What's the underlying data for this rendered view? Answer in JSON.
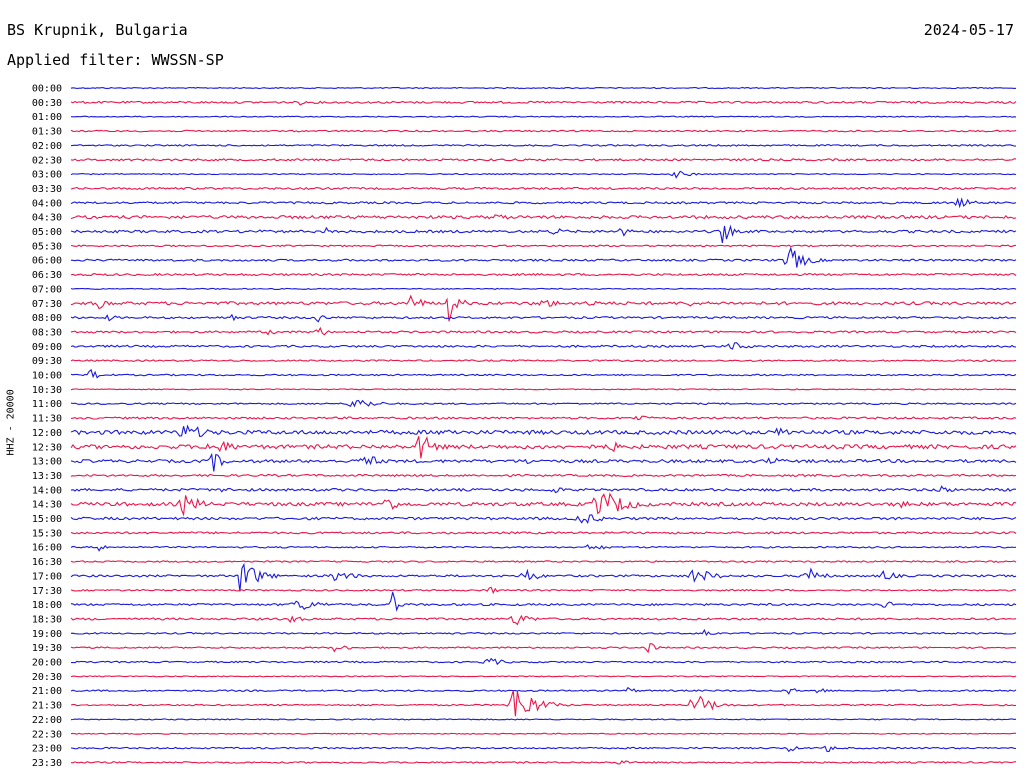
{
  "header": {
    "station": "BS Krupnik, Bulgaria",
    "filter": "Applied filter: WWSSN-SP",
    "date": "2024-05-17"
  },
  "chart_data": {
    "type": "line",
    "title": "BS Krupnik, Bulgaria",
    "subtitle": "Applied filter: WWSSN-SP",
    "date": "2024-05-17",
    "ylabel": "HHZ - 20000",
    "trace_colors": [
      "#1a1adc",
      "#e8174a"
    ],
    "rows": [
      "00:00",
      "00:30",
      "01:00",
      "01:30",
      "02:00",
      "02:30",
      "03:00",
      "03:30",
      "04:00",
      "04:30",
      "05:00",
      "05:30",
      "06:00",
      "06:30",
      "07:00",
      "07:30",
      "08:00",
      "08:30",
      "09:00",
      "09:30",
      "10:00",
      "10:30",
      "11:00",
      "11:30",
      "12:00",
      "12:30",
      "13:00",
      "13:30",
      "14:00",
      "14:30",
      "15:00",
      "15:30",
      "16:00",
      "16:30",
      "17:00",
      "17:30",
      "18:00",
      "18:30",
      "19:00",
      "19:30",
      "20:00",
      "20:30",
      "21:00",
      "21:30",
      "22:00",
      "22:30",
      "23:00",
      "23:30"
    ],
    "noise": [
      1,
      2,
      1,
      1.5,
      1.5,
      2,
      1,
      2,
      2,
      3,
      2.5,
      1.5,
      2,
      2,
      1,
      3,
      2,
      2,
      2,
      1.5,
      1.5,
      1,
      1.5,
      2,
      4,
      4,
      3,
      2,
      2.5,
      3.5,
      2.5,
      2,
      1.5,
      1.5,
      2,
      1.5,
      2,
      2,
      1.5,
      1.5,
      1.5,
      1,
      1.5,
      1.5,
      1,
      1,
      1.5,
      1.5
    ],
    "events": [
      {
        "row": "00:30",
        "t": 0.24,
        "amp": 4,
        "dur": 0.02
      },
      {
        "row": "03:00",
        "t": 0.64,
        "amp": 4,
        "dur": 0.05
      },
      {
        "row": "04:00",
        "t": 0.94,
        "amp": 5,
        "dur": 0.05
      },
      {
        "row": "04:30",
        "t": 0.45,
        "amp": 4,
        "dur": 0.05
      },
      {
        "row": "05:00",
        "t": 0.2,
        "amp": 4,
        "dur": 0.02
      },
      {
        "row": "05:00",
        "t": 0.27,
        "amp": 5,
        "dur": 0.01
      },
      {
        "row": "05:00",
        "t": 0.51,
        "amp": 4,
        "dur": 0.05
      },
      {
        "row": "05:00",
        "t": 0.69,
        "amp": 18,
        "dur": 0.02
      },
      {
        "row": "05:00",
        "t": 0.58,
        "amp": 6,
        "dur": 0.04
      },
      {
        "row": "06:00",
        "t": 0.76,
        "amp": 14,
        "dur": 0.05
      },
      {
        "row": "07:30",
        "t": 0.03,
        "amp": 6,
        "dur": 0.04
      },
      {
        "row": "07:30",
        "t": 0.36,
        "amp": 12,
        "dur": 0.03
      },
      {
        "row": "07:30",
        "t": 0.4,
        "amp": 18,
        "dur": 0.03
      },
      {
        "row": "07:30",
        "t": 0.5,
        "amp": 5,
        "dur": 0.06
      },
      {
        "row": "07:30",
        "t": 0.55,
        "amp": 8,
        "dur": 0.02
      },
      {
        "row": "07:30",
        "t": 0.65,
        "amp": 5,
        "dur": 0.04
      },
      {
        "row": "08:00",
        "t": 0.04,
        "amp": 5,
        "dur": 0.02
      },
      {
        "row": "08:00",
        "t": 0.17,
        "amp": 10,
        "dur": 0.01
      },
      {
        "row": "08:00",
        "t": 0.26,
        "amp": 8,
        "dur": 0.02
      },
      {
        "row": "08:30",
        "t": 0.21,
        "amp": 5,
        "dur": 0.02
      },
      {
        "row": "08:30",
        "t": 0.26,
        "amp": 7,
        "dur": 0.03
      },
      {
        "row": "09:00",
        "t": 0.7,
        "amp": 5,
        "dur": 0.05
      },
      {
        "row": "10:00",
        "t": 0.02,
        "amp": 6,
        "dur": 0.04
      },
      {
        "row": "11:00",
        "t": 0.3,
        "amp": 7,
        "dur": 0.06
      },
      {
        "row": "11:30",
        "t": 0.6,
        "amp": 4,
        "dur": 0.04
      },
      {
        "row": "12:00",
        "t": 0.12,
        "amp": 9,
        "dur": 0.08
      },
      {
        "row": "12:00",
        "t": 0.4,
        "amp": 5,
        "dur": 0.05
      },
      {
        "row": "12:00",
        "t": 0.75,
        "amp": 6,
        "dur": 0.06
      },
      {
        "row": "12:30",
        "t": 0.15,
        "amp": 8,
        "dur": 0.08
      },
      {
        "row": "12:30",
        "t": 0.37,
        "amp": 16,
        "dur": 0.04
      },
      {
        "row": "12:30",
        "t": 0.57,
        "amp": 6,
        "dur": 0.05
      },
      {
        "row": "13:00",
        "t": 0.15,
        "amp": 12,
        "dur": 0.03
      },
      {
        "row": "13:00",
        "t": 0.31,
        "amp": 10,
        "dur": 0.04
      },
      {
        "row": "13:00",
        "t": 0.48,
        "amp": 5,
        "dur": 0.03
      },
      {
        "row": "13:00",
        "t": 0.74,
        "amp": 5,
        "dur": 0.04
      },
      {
        "row": "14:00",
        "t": 0.16,
        "amp": 7,
        "dur": 0.02
      },
      {
        "row": "14:00",
        "t": 0.51,
        "amp": 5,
        "dur": 0.03
      },
      {
        "row": "14:00",
        "t": 0.92,
        "amp": 6,
        "dur": 0.03
      },
      {
        "row": "14:30",
        "t": 0.12,
        "amp": 12,
        "dur": 0.05
      },
      {
        "row": "14:30",
        "t": 0.33,
        "amp": 10,
        "dur": 0.05
      },
      {
        "row": "14:30",
        "t": 0.56,
        "amp": 16,
        "dur": 0.08
      },
      {
        "row": "14:30",
        "t": 0.88,
        "amp": 5,
        "dur": 0.03
      },
      {
        "row": "15:00",
        "t": 0.54,
        "amp": 7,
        "dur": 0.06
      },
      {
        "row": "16:00",
        "t": 0.03,
        "amp": 4,
        "dur": 0.03
      },
      {
        "row": "16:00",
        "t": 0.55,
        "amp": 5,
        "dur": 0.04
      },
      {
        "row": "17:00",
        "t": 0.18,
        "amp": 20,
        "dur": 0.05
      },
      {
        "row": "17:00",
        "t": 0.28,
        "amp": 6,
        "dur": 0.06
      },
      {
        "row": "17:00",
        "t": 0.48,
        "amp": 8,
        "dur": 0.04
      },
      {
        "row": "17:00",
        "t": 0.66,
        "amp": 9,
        "dur": 0.06
      },
      {
        "row": "17:00",
        "t": 0.78,
        "amp": 10,
        "dur": 0.04
      },
      {
        "row": "17:00",
        "t": 0.86,
        "amp": 6,
        "dur": 0.04
      },
      {
        "row": "17:30",
        "t": 0.44,
        "amp": 8,
        "dur": 0.02
      },
      {
        "row": "18:00",
        "t": 0.24,
        "amp": 7,
        "dur": 0.07
      },
      {
        "row": "18:00",
        "t": 0.34,
        "amp": 14,
        "dur": 0.02
      },
      {
        "row": "18:00",
        "t": 0.86,
        "amp": 5,
        "dur": 0.03
      },
      {
        "row": "18:30",
        "t": 0.23,
        "amp": 5,
        "dur": 0.04
      },
      {
        "row": "18:30",
        "t": 0.47,
        "amp": 7,
        "dur": 0.05
      },
      {
        "row": "19:00",
        "t": 0.67,
        "amp": 5,
        "dur": 0.03
      },
      {
        "row": "19:30",
        "t": 0.28,
        "amp": 5,
        "dur": 0.04
      },
      {
        "row": "19:30",
        "t": 0.61,
        "amp": 9,
        "dur": 0.02
      },
      {
        "row": "20:00",
        "t": 0.44,
        "amp": 5,
        "dur": 0.05
      },
      {
        "row": "21:00",
        "t": 0.59,
        "amp": 5,
        "dur": 0.02
      },
      {
        "row": "21:00",
        "t": 0.76,
        "amp": 5,
        "dur": 0.02
      },
      {
        "row": "21:00",
        "t": 0.79,
        "amp": 6,
        "dur": 0.02
      },
      {
        "row": "21:30",
        "t": 0.47,
        "amp": 22,
        "dur": 0.06
      },
      {
        "row": "21:30",
        "t": 0.66,
        "amp": 14,
        "dur": 0.05
      },
      {
        "row": "23:00",
        "t": 0.76,
        "amp": 5,
        "dur": 0.02
      },
      {
        "row": "23:00",
        "t": 0.8,
        "amp": 6,
        "dur": 0.02
      },
      {
        "row": "23:30",
        "t": 0.58,
        "amp": 5,
        "dur": 0.02
      }
    ]
  }
}
